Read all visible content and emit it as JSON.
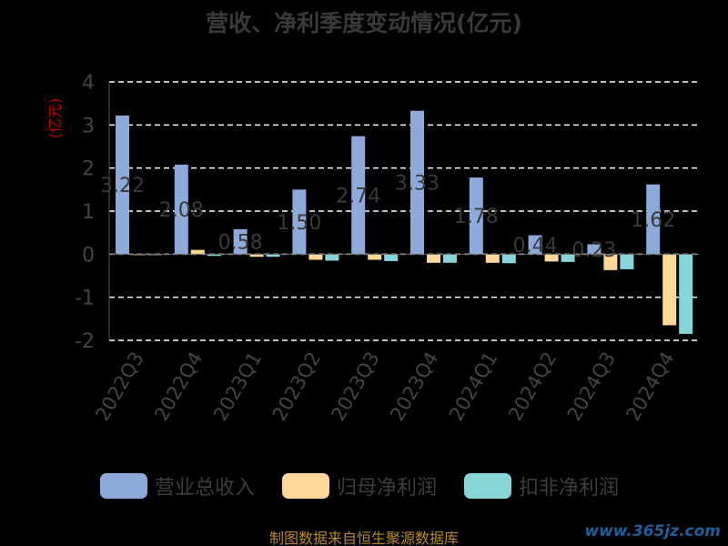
{
  "title": "营收、净利季度变动情况(亿元)",
  "source": "制图数据来自恒生聚源数据库",
  "watermark": "www.365jz.com",
  "colors": {
    "revenue": "#8eaadb",
    "net_profit": "#ffd899",
    "deducted_net_profit": "#86d5d8",
    "grid": "#ffffff",
    "axis_text": "#444444",
    "value_label": "#3a3a3a"
  },
  "chart_data": {
    "type": "bar",
    "title": "营收、净利季度变动情况(亿元)",
    "ylabel": "(亿元)",
    "ylim": [
      -2,
      4
    ],
    "yticks": [
      4,
      3,
      2,
      1,
      0,
      -1,
      -2
    ],
    "grid": true,
    "legend_position": "bottom",
    "categories": [
      "2022Q3",
      "2022Q4",
      "2023Q1",
      "2023Q2",
      "2023Q3",
      "2023Q4",
      "2024Q1",
      "2024Q2",
      "2024Q3",
      "2024Q4"
    ],
    "series": [
      {
        "name": "营业总收入",
        "values": [
          3.22,
          2.08,
          0.58,
          1.5,
          2.74,
          3.33,
          1.78,
          0.44,
          0.23,
          1.62
        ]
      },
      {
        "name": "归母净利润",
        "values": [
          -0.02,
          0.1,
          -0.06,
          -0.13,
          -0.13,
          -0.2,
          -0.2,
          -0.17,
          -0.37,
          -1.65
        ]
      },
      {
        "name": "扣非净利润",
        "values": [
          -0.02,
          -0.04,
          -0.06,
          -0.15,
          -0.16,
          -0.2,
          -0.21,
          -0.18,
          -0.35,
          -1.85
        ]
      }
    ],
    "value_labels": [
      "3.22",
      "2.08",
      "0.58",
      "1.50",
      "2.74",
      "3.33",
      "1.78",
      "0.44",
      "0.23",
      "1.62"
    ]
  }
}
